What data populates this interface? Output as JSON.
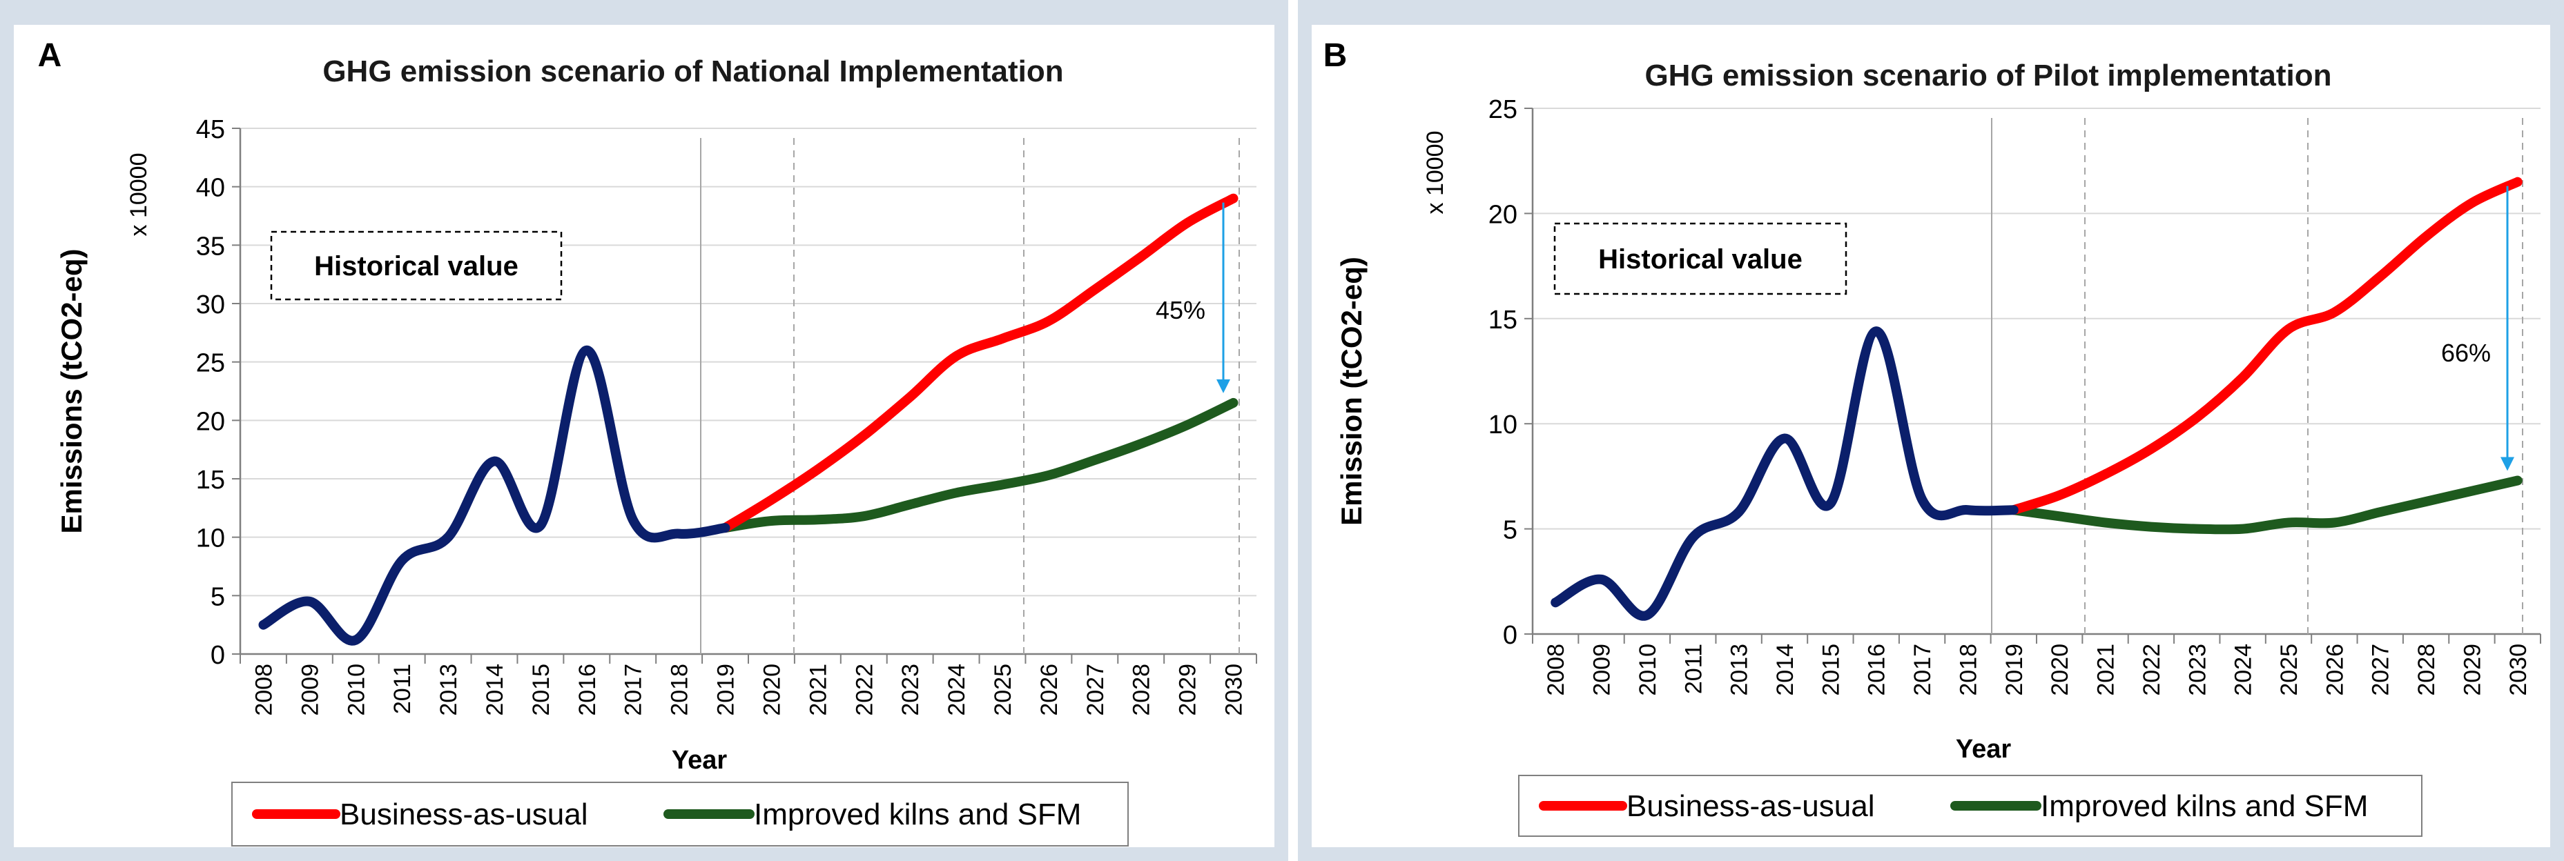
{
  "colors": {
    "panel_bg": "#d6dfe9",
    "plot_bg": "#ffffff",
    "historical": "#0b1f6b",
    "bau": "#ff0000",
    "improved": "#1e5a1e",
    "arrow": "#1ea0e6",
    "grid": "#d9d9d9",
    "axis": "#7f7f7f"
  },
  "chart_data": [
    {
      "type": "line",
      "panel_label": "A",
      "title": "GHG emission scenario of National Implementation",
      "ylabel": "Emissions (tCO2-eq)",
      "multiplier": "x 10000",
      "xlabel": "Year",
      "ylim": [
        0,
        45
      ],
      "yticks": [
        0,
        5,
        10,
        15,
        20,
        25,
        30,
        35,
        40,
        45
      ],
      "categories": [
        "2008",
        "2009",
        "2010",
        "2011",
        "2013",
        "2014",
        "2015",
        "2016",
        "2017",
        "2018",
        "2019",
        "2020",
        "2021",
        "2022",
        "2023",
        "2024",
        "2025",
        "2026",
        "2027",
        "2028",
        "2029",
        "2030"
      ],
      "annotation_box": "Historical value",
      "reduction_label": "45%",
      "legend": [
        "Business-as-usual",
        "Improved kilns and SFM"
      ],
      "series": [
        {
          "name": "Historical",
          "values": [
            2.5,
            4.5,
            1.2,
            8.0,
            10.0,
            16.5,
            11.0,
            26.0,
            11.5,
            10.3,
            10.8,
            null,
            null,
            null,
            null,
            null,
            null,
            null,
            null,
            null,
            null,
            null
          ]
        },
        {
          "name": "Business-as-usual",
          "values": [
            null,
            null,
            null,
            null,
            null,
            null,
            null,
            null,
            null,
            null,
            10.8,
            13.2,
            15.8,
            18.7,
            22.0,
            25.5,
            27.0,
            28.5,
            31.2,
            34.0,
            36.9,
            39.0
          ]
        },
        {
          "name": "Improved kilns and SFM",
          "values": [
            null,
            null,
            null,
            null,
            null,
            null,
            null,
            null,
            null,
            null,
            10.8,
            11.4,
            11.5,
            11.8,
            12.8,
            13.8,
            14.5,
            15.3,
            16.6,
            18.0,
            19.6,
            21.5
          ]
        }
      ]
    },
    {
      "type": "line",
      "panel_label": "B",
      "title": "GHG emission scenario of Pilot implementation",
      "ylabel": "Emission (tCO2-eq)",
      "multiplier": "x 10000",
      "xlabel": "Year",
      "ylim": [
        0,
        25
      ],
      "yticks": [
        0,
        5,
        10,
        15,
        20,
        25
      ],
      "categories": [
        "2008",
        "2009",
        "2010",
        "2011",
        "2013",
        "2014",
        "2015",
        "2016",
        "2017",
        "2018",
        "2019",
        "2020",
        "2021",
        "2022",
        "2023",
        "2024",
        "2025",
        "2026",
        "2027",
        "2028",
        "2029",
        "2030"
      ],
      "annotation_box": "Historical value",
      "reduction_label": "66%",
      "legend": [
        "Business-as-usual",
        "Improved kilns and SFM"
      ],
      "series": [
        {
          "name": "Historical",
          "values": [
            1.5,
            2.6,
            0.9,
            4.6,
            5.8,
            9.3,
            6.2,
            14.4,
            6.4,
            5.9,
            5.9,
            null,
            null,
            null,
            null,
            null,
            null,
            null,
            null,
            null,
            null,
            null
          ]
        },
        {
          "name": "Business-as-usual",
          "values": [
            null,
            null,
            null,
            null,
            null,
            null,
            null,
            null,
            null,
            null,
            5.9,
            6.6,
            7.6,
            8.8,
            10.3,
            12.2,
            14.5,
            15.3,
            17.0,
            18.9,
            20.5,
            21.5
          ]
        },
        {
          "name": "Improved kilns and SFM",
          "values": [
            null,
            null,
            null,
            null,
            null,
            null,
            null,
            null,
            null,
            null,
            5.9,
            5.6,
            5.3,
            5.1,
            5.0,
            5.0,
            5.3,
            5.3,
            5.8,
            6.3,
            6.8,
            7.3
          ]
        }
      ]
    }
  ]
}
